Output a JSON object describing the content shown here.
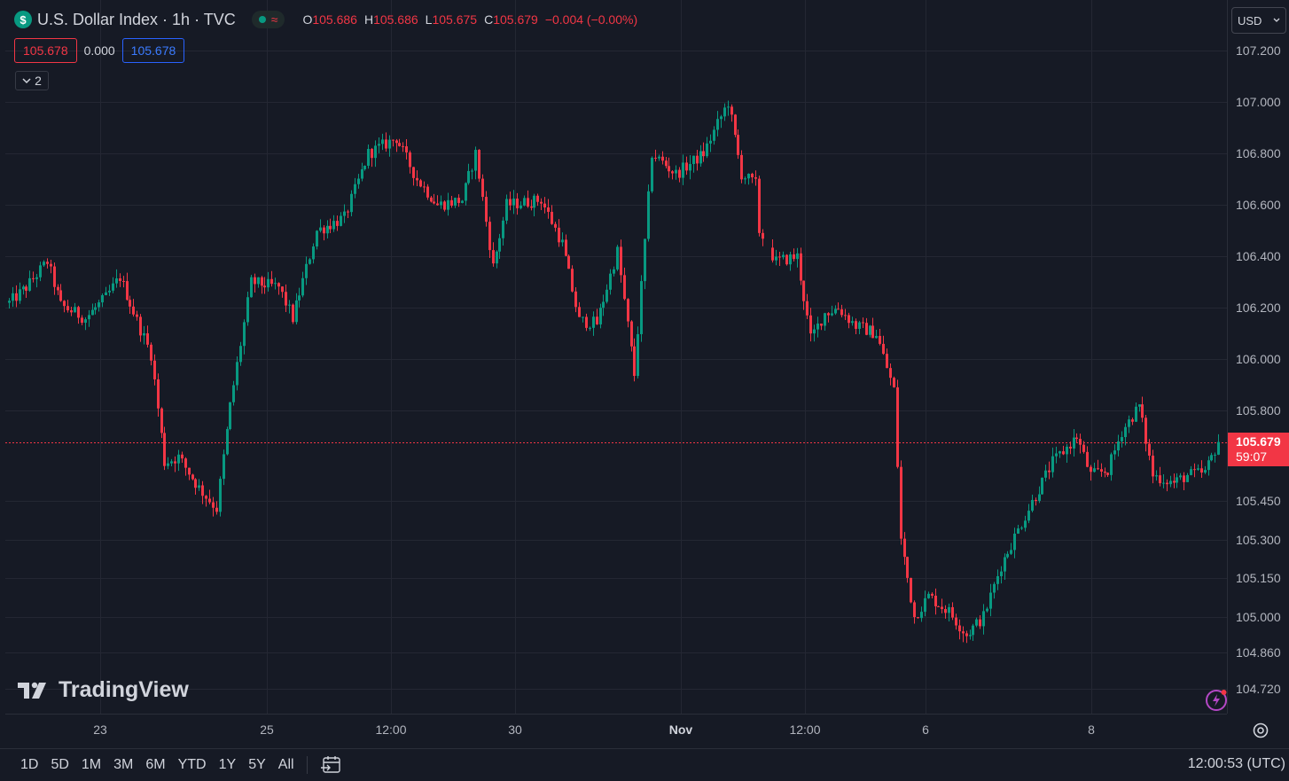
{
  "header": {
    "symbol_badge": "$",
    "title": "U.S. Dollar Index · 1h · TVC",
    "status_wave": "≈",
    "ohlc": {
      "o_label": "O",
      "o_value": "105.686",
      "h_label": "H",
      "h_value": "105.686",
      "l_label": "L",
      "l_value": "105.675",
      "c_label": "C",
      "c_value": "105.679",
      "change": "−0.004 (−0.00%)"
    }
  },
  "trade": {
    "bid": "105.678",
    "spread": "0.000",
    "ask": "105.678"
  },
  "indicators_toggle": {
    "count": "2"
  },
  "currency": {
    "label": "USD"
  },
  "watermark": {
    "text": "TradingView"
  },
  "last_price": {
    "value": "105.679",
    "countdown": "59:07"
  },
  "bottom_bar": {
    "ranges": [
      "1D",
      "5D",
      "1M",
      "3M",
      "6M",
      "YTD",
      "1Y",
      "5Y",
      "All"
    ],
    "clock": "12:00:53 (UTC)"
  },
  "colors": {
    "up": "#089981",
    "down": "#f23645",
    "background": "#161a25",
    "grid": "#242733"
  },
  "chart_data": {
    "type": "candlestick",
    "title": "U.S. Dollar Index · 1h · TVC",
    "y_tick_labels": [
      "107.200",
      "107.000",
      "106.800",
      "106.600",
      "106.400",
      "106.200",
      "106.000",
      "105.800",
      "105.450",
      "105.300",
      "105.150",
      "105.000",
      "104.860",
      "104.720"
    ],
    "y_ticks": [
      107.2,
      107.0,
      106.8,
      106.6,
      106.4,
      106.2,
      106.0,
      105.8,
      105.45,
      105.3,
      105.15,
      105.0,
      104.86,
      104.72
    ],
    "ylim": [
      104.64,
      107.28
    ],
    "x_tick_labels": [
      "23",
      "25",
      "12:00",
      "30",
      "Nov",
      "12:00",
      "6",
      "8"
    ],
    "last_price": 105.679,
    "grid": true,
    "anchors": [
      {
        "t": 0,
        "p": 106.22
      },
      {
        "t": 5,
        "p": 106.28
      },
      {
        "t": 11,
        "p": 106.38
      },
      {
        "t": 15,
        "p": 106.21
      },
      {
        "t": 22,
        "p": 106.16
      },
      {
        "t": 28,
        "p": 106.24
      },
      {
        "t": 32,
        "p": 106.32
      },
      {
        "t": 37,
        "p": 106.15
      },
      {
        "t": 41,
        "p": 106.02
      },
      {
        "t": 45,
        "p": 105.6
      },
      {
        "t": 49,
        "p": 105.62
      },
      {
        "t": 55,
        "p": 105.5
      },
      {
        "t": 60,
        "p": 105.42
      },
      {
        "t": 64,
        "p": 105.82
      },
      {
        "t": 70,
        "p": 106.3
      },
      {
        "t": 78,
        "p": 106.28
      },
      {
        "t": 82,
        "p": 106.16
      },
      {
        "t": 89,
        "p": 106.5
      },
      {
        "t": 97,
        "p": 106.55
      },
      {
        "t": 104,
        "p": 106.8
      },
      {
        "t": 112,
        "p": 106.86
      },
      {
        "t": 118,
        "p": 106.7
      },
      {
        "t": 124,
        "p": 106.6
      },
      {
        "t": 131,
        "p": 106.62
      },
      {
        "t": 135,
        "p": 106.8
      },
      {
        "t": 140,
        "p": 106.36
      },
      {
        "t": 144,
        "p": 106.6
      },
      {
        "t": 154,
        "p": 106.62
      },
      {
        "t": 160,
        "p": 106.45
      },
      {
        "t": 165,
        "p": 106.15
      },
      {
        "t": 170,
        "p": 106.14
      },
      {
        "t": 176,
        "p": 106.42
      },
      {
        "t": 181,
        "p": 105.94
      },
      {
        "t": 186,
        "p": 106.8
      },
      {
        "t": 193,
        "p": 106.72
      },
      {
        "t": 201,
        "p": 106.8
      },
      {
        "t": 208,
        "p": 107.0
      },
      {
        "t": 212,
        "p": 106.72
      },
      {
        "t": 216,
        "p": 106.68
      },
      {
        "t": 217,
        "p": 106.5
      },
      {
        "t": 222,
        "p": 106.38
      },
      {
        "t": 228,
        "p": 106.4
      },
      {
        "t": 232,
        "p": 106.08
      },
      {
        "t": 236,
        "p": 106.18
      },
      {
        "t": 240,
        "p": 106.2
      },
      {
        "t": 245,
        "p": 106.13
      },
      {
        "t": 251,
        "p": 106.1
      },
      {
        "t": 256,
        "p": 105.88
      },
      {
        "t": 258,
        "p": 105.3
      },
      {
        "t": 262,
        "p": 105.0
      },
      {
        "t": 266,
        "p": 105.08
      },
      {
        "t": 272,
        "p": 105.02
      },
      {
        "t": 277,
        "p": 104.93
      },
      {
        "t": 282,
        "p": 105.0
      },
      {
        "t": 287,
        "p": 105.2
      },
      {
        "t": 295,
        "p": 105.42
      },
      {
        "t": 302,
        "p": 105.6
      },
      {
        "t": 309,
        "p": 105.7
      },
      {
        "t": 313,
        "p": 105.55
      },
      {
        "t": 318,
        "p": 105.57
      },
      {
        "t": 322,
        "p": 105.72
      },
      {
        "t": 327,
        "p": 105.82
      },
      {
        "t": 331,
        "p": 105.55
      },
      {
        "t": 337,
        "p": 105.52
      },
      {
        "t": 341,
        "p": 105.55
      },
      {
        "t": 346,
        "p": 105.56
      },
      {
        "t": 350,
        "p": 105.68
      }
    ]
  }
}
